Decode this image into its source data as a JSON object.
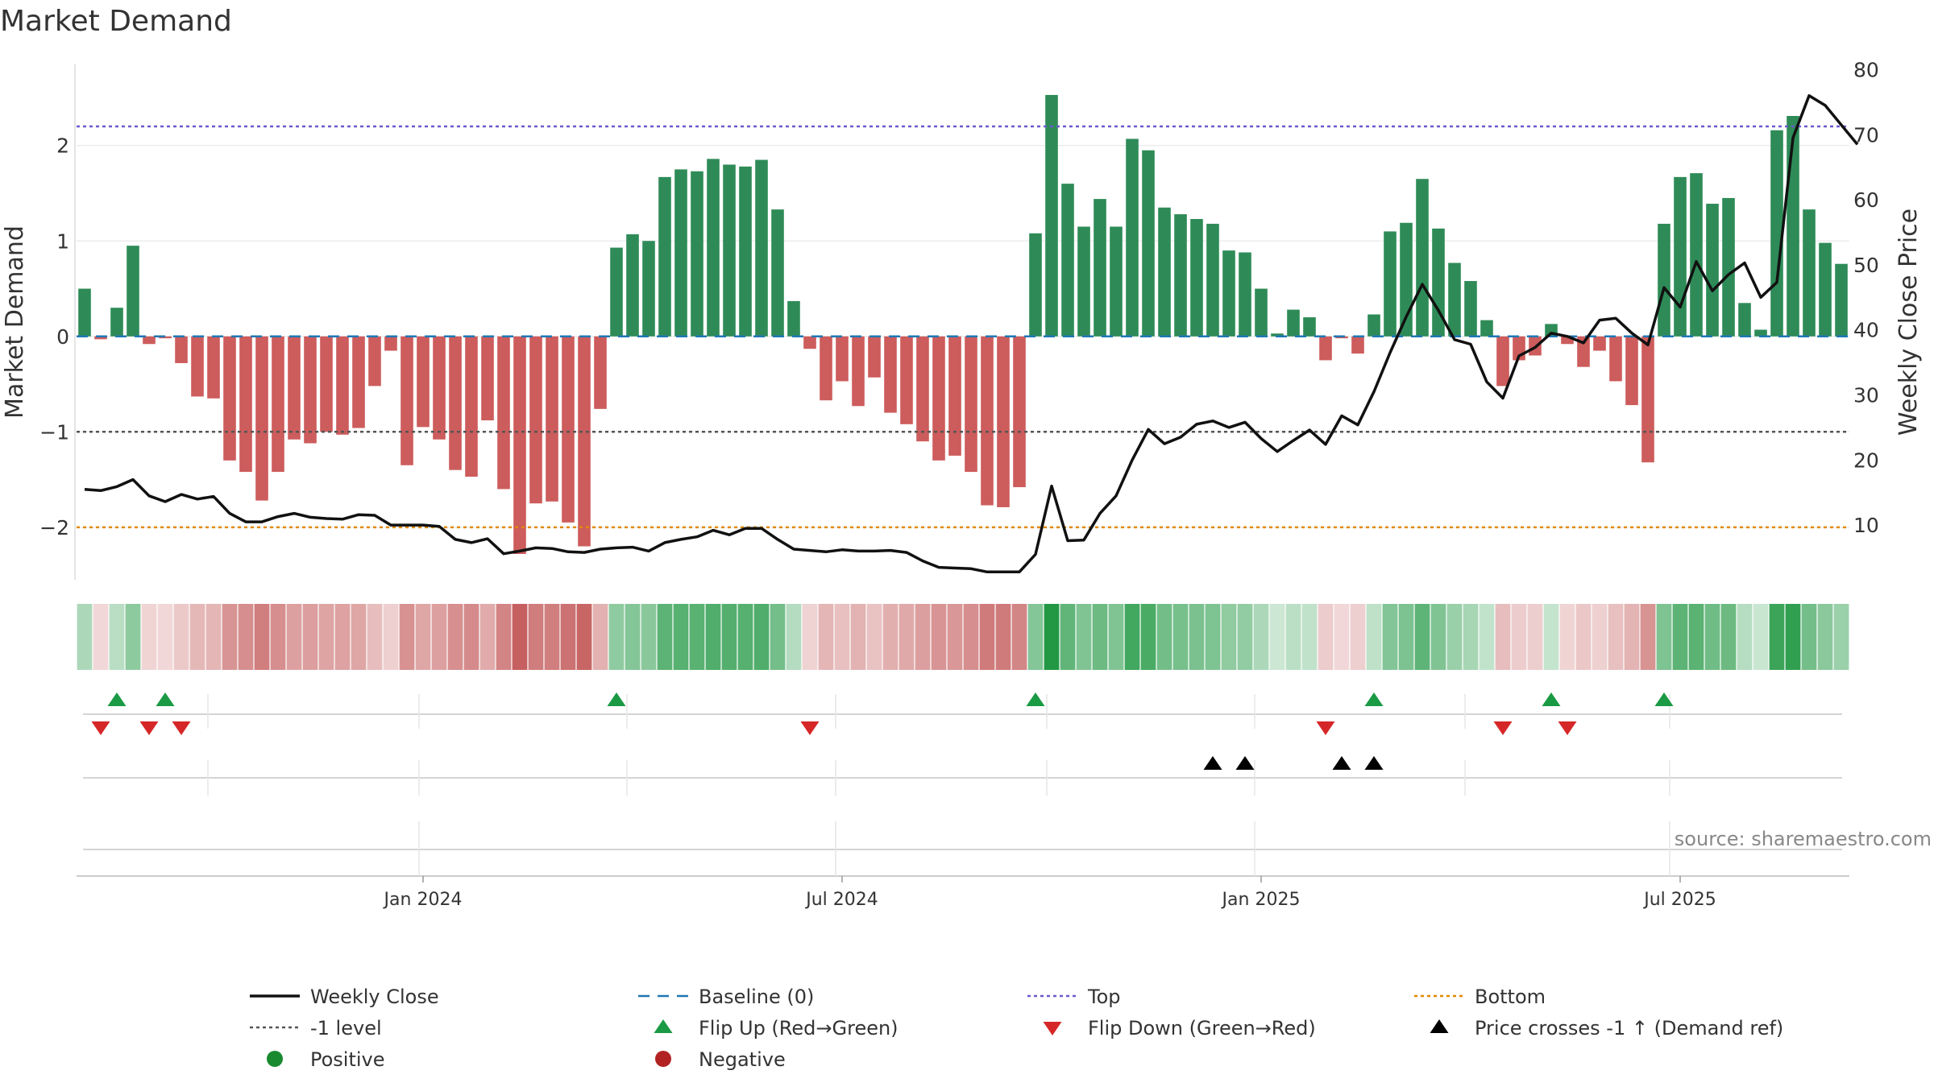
{
  "chart_data": {
    "type": "bar",
    "title": "Market Demand",
    "ylabel": "Market Demand",
    "y2label": "Weekly Close Price",
    "ylim": [
      -2.55,
      2.85
    ],
    "y2lim": [
      1.6,
      80.8
    ],
    "yticks": [
      -2,
      -1,
      0,
      1,
      2
    ],
    "ytick_labels": [
      "−2",
      "−1",
      "0",
      "1",
      "2"
    ],
    "y2ticks": [
      10,
      20,
      30,
      40,
      50,
      60,
      70,
      80
    ],
    "xticks": [
      {
        "index": 21,
        "label": "Jan 2024"
      },
      {
        "index": 47,
        "label": "Jul 2024"
      },
      {
        "index": 73,
        "label": "Jan 2025"
      },
      {
        "index": 99,
        "label": "Jul 2025"
      }
    ],
    "colors": {
      "positive_bar": "#2e8b57",
      "negative_bar": "#cd5c5c",
      "price_line": "#111111",
      "baseline": "#1f77b4",
      "top_line": "#6a5acd",
      "bottom_line": "#e08a00",
      "minus1_line": "#555555",
      "flip_up": "#1a9a44",
      "flip_down": "#d62728",
      "cross_marker": "#000000"
    },
    "reference_levels": {
      "top": 2.2,
      "bottom": -2.0,
      "minus1": -1.0,
      "baseline": 0
    },
    "demand": [
      0.5,
      -0.03,
      0.3,
      0.95,
      -0.08,
      -0.02,
      -0.28,
      -0.63,
      -0.65,
      -1.3,
      -1.42,
      -1.72,
      -1.42,
      -1.08,
      -1.12,
      -1.0,
      -1.03,
      -0.96,
      -0.52,
      -0.15,
      -1.35,
      -0.95,
      -1.08,
      -1.4,
      -1.47,
      -0.88,
      -1.6,
      -2.28,
      -1.75,
      -1.73,
      -1.95,
      -2.2,
      -0.76,
      0.93,
      1.07,
      1.0,
      1.67,
      1.75,
      1.73,
      1.86,
      1.8,
      1.78,
      1.85,
      1.33,
      0.37,
      -0.13,
      -0.67,
      -0.47,
      -0.73,
      -0.43,
      -0.8,
      -0.92,
      -1.1,
      -1.3,
      -1.25,
      -1.42,
      -1.77,
      -1.79,
      -1.58,
      1.08,
      2.53,
      1.6,
      1.15,
      1.44,
      1.15,
      2.07,
      1.95,
      1.35,
      1.28,
      1.23,
      1.18,
      0.9,
      0.88,
      0.5,
      0.03,
      0.28,
      0.2,
      -0.25,
      -0.02,
      -0.18,
      0.23,
      1.1,
      1.19,
      1.65,
      1.13,
      0.77,
      0.58,
      0.17,
      -0.52,
      -0.25,
      -0.2,
      0.13,
      -0.08,
      -0.32,
      -0.15,
      -0.47,
      -0.72,
      -1.32,
      1.18,
      1.67,
      1.71,
      1.39,
      1.45,
      0.35,
      0.07,
      2.16,
      2.31,
      1.33,
      0.98,
      0.76
    ],
    "weekly_close": [
      15.5,
      15.3,
      15.9,
      17.0,
      14.5,
      13.6,
      14.7,
      14.0,
      14.4,
      11.8,
      10.5,
      10.5,
      11.3,
      11.8,
      11.2,
      11.0,
      10.9,
      11.6,
      11.5,
      10.0,
      10.0,
      10.0,
      9.8,
      7.8,
      7.3,
      7.9,
      5.6,
      6.0,
      6.5,
      6.4,
      5.9,
      5.8,
      6.3,
      6.5,
      6.6,
      6.0,
      7.3,
      7.8,
      8.2,
      9.2,
      8.5,
      9.5,
      9.5,
      7.8,
      6.3,
      6.1,
      5.9,
      6.2,
      6.0,
      6.0,
      6.1,
      5.8,
      4.5,
      3.5,
      3.4,
      3.3,
      2.8,
      2.8,
      2.8,
      5.5,
      16.0,
      7.6,
      7.7,
      11.8,
      14.5,
      20.0,
      24.7,
      22.5,
      23.5,
      25.5,
      26.0,
      25.0,
      25.8,
      23.3,
      21.3,
      23.0,
      24.6,
      22.4,
      26.8,
      25.4,
      30.5,
      36.5,
      42.0,
      47.0,
      43.0,
      38.5,
      37.8,
      32.0,
      29.5,
      36.0,
      37.3,
      39.5,
      39.0,
      38.0,
      41.5,
      41.8,
      39.5,
      37.7,
      46.5,
      43.5,
      50.5,
      46.0,
      48.5,
      50.3,
      45.0,
      47.3,
      69.5,
      76.0,
      74.5,
      71.5,
      68.5
    ],
    "flip_up": [
      2,
      5,
      33,
      59,
      80,
      91,
      98
    ],
    "flip_down": [
      1,
      4,
      6,
      45,
      77,
      88,
      92
    ],
    "price_cross": [
      70,
      72,
      78,
      80
    ]
  },
  "source": "source: sharemaestro.com",
  "legend": [
    {
      "label": "Weekly Close",
      "kind": "solid-line",
      "color": "#111111"
    },
    {
      "label": "Baseline (0)",
      "kind": "dash-line",
      "color": "#1f77b4"
    },
    {
      "label": "Top",
      "kind": "dot-line",
      "color": "#6a5acd"
    },
    {
      "label": "Bottom",
      "kind": "dot-line",
      "color": "#e08a00"
    },
    {
      "label": "-1 level",
      "kind": "dot-line",
      "color": "#555555"
    },
    {
      "label": "Flip Up (Red→Green)",
      "kind": "tri-up",
      "color": "#1a9a44"
    },
    {
      "label": "Flip Down (Green→Red)",
      "kind": "tri-down",
      "color": "#d62728"
    },
    {
      "label": "Price crosses -1 ↑ (Demand ref)",
      "kind": "tri-up",
      "color": "#000000"
    },
    {
      "label": "Positive",
      "kind": "dot",
      "color": "#1a8a30"
    },
    {
      "label": "Negative",
      "kind": "dot",
      "color": "#b22222"
    }
  ]
}
